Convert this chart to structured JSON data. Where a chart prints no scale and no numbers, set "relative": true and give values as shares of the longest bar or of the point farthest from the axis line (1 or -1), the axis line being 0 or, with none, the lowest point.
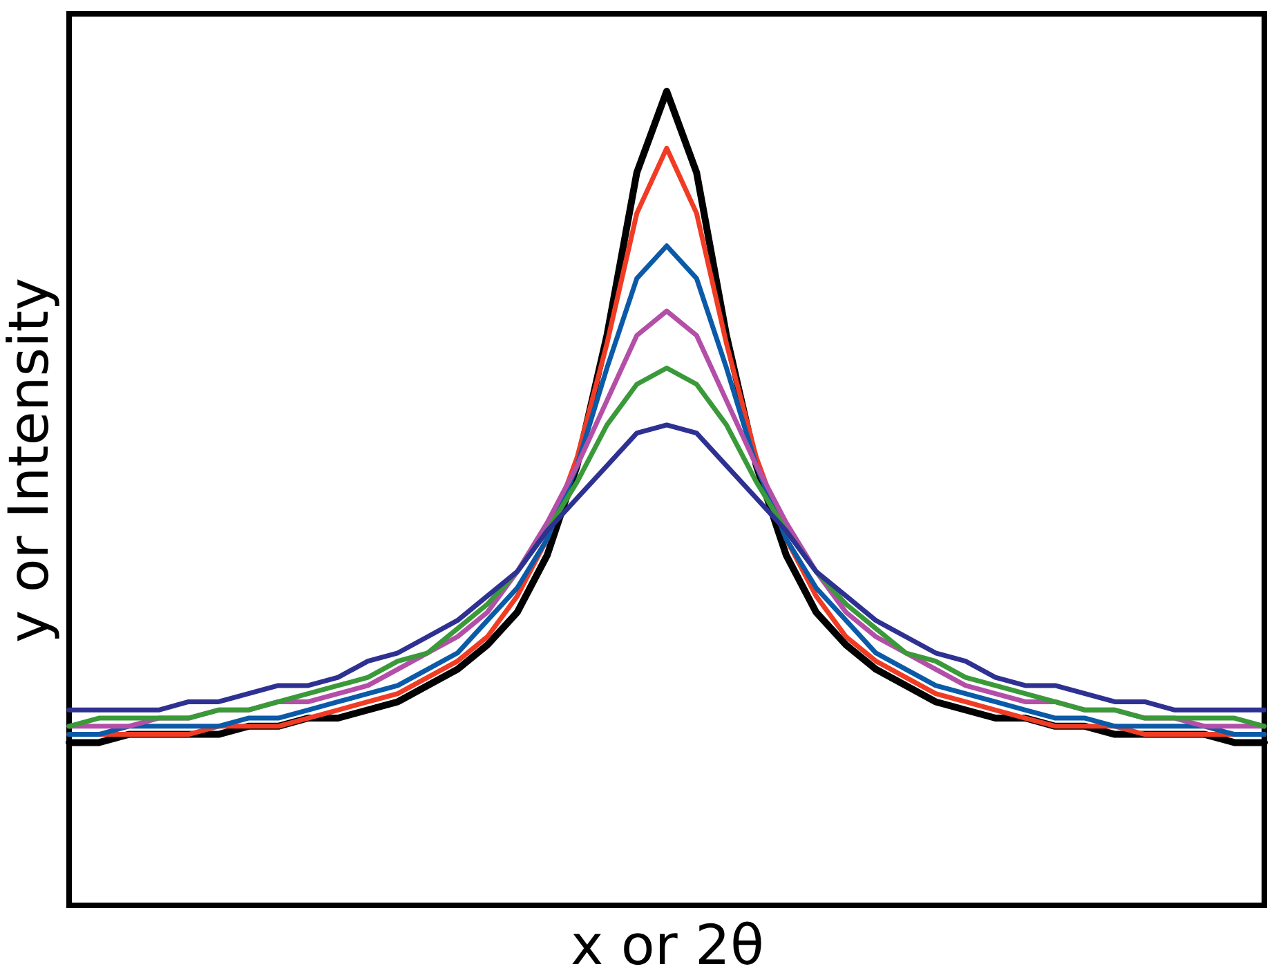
{
  "chart_data": {
    "type": "line",
    "relative": true,
    "xlabel": "x or 2θ",
    "ylabel": "y or Intensity",
    "categories": [
      null,
      null,
      null,
      null,
      null,
      null,
      null,
      null,
      null,
      null,
      null,
      null,
      null,
      null,
      null,
      null,
      null,
      null,
      null,
      null,
      null,
      null,
      null,
      null,
      null,
      null,
      null,
      null,
      null,
      null,
      null,
      null,
      null,
      null,
      null,
      null,
      null,
      null,
      null,
      null,
      null
    ],
    "series": [
      {
        "color": "#000000",
        "values": [
          0.2,
          0.2,
          0.21,
          0.21,
          0.21,
          0.21,
          0.22,
          0.22,
          0.23,
          0.23,
          0.24,
          0.25,
          0.27,
          0.29,
          0.32,
          0.36,
          0.43,
          0.54,
          0.7,
          0.9,
          1.0,
          0.9,
          0.7,
          0.54,
          0.43,
          0.36,
          0.32,
          0.29,
          0.27,
          0.25,
          0.24,
          0.23,
          0.23,
          0.22,
          0.22,
          0.21,
          0.21,
          0.21,
          0.21,
          0.2,
          0.2
        ]
      },
      {
        "color": "#f03c24",
        "values": [
          0.21,
          0.21,
          0.21,
          0.21,
          0.21,
          0.22,
          0.22,
          0.22,
          0.23,
          0.24,
          0.25,
          0.26,
          0.28,
          0.3,
          0.33,
          0.38,
          0.45,
          0.55,
          0.69,
          0.85,
          0.93,
          0.85,
          0.69,
          0.55,
          0.45,
          0.38,
          0.33,
          0.3,
          0.28,
          0.26,
          0.25,
          0.24,
          0.23,
          0.22,
          0.22,
          0.22,
          0.21,
          0.21,
          0.21,
          0.21,
          0.21
        ]
      },
      {
        "color": "#0a5aa8",
        "values": [
          0.21,
          0.21,
          0.22,
          0.22,
          0.22,
          0.22,
          0.23,
          0.23,
          0.24,
          0.25,
          0.26,
          0.27,
          0.29,
          0.31,
          0.35,
          0.39,
          0.45,
          0.54,
          0.66,
          0.77,
          0.81,
          0.77,
          0.66,
          0.54,
          0.45,
          0.39,
          0.35,
          0.31,
          0.29,
          0.27,
          0.26,
          0.25,
          0.24,
          0.23,
          0.23,
          0.22,
          0.22,
          0.22,
          0.22,
          0.21,
          0.21
        ]
      },
      {
        "color": "#b44fa8",
        "values": [
          0.22,
          0.22,
          0.22,
          0.23,
          0.23,
          0.24,
          0.24,
          0.25,
          0.25,
          0.26,
          0.27,
          0.29,
          0.31,
          0.33,
          0.36,
          0.41,
          0.47,
          0.54,
          0.62,
          0.7,
          0.73,
          0.7,
          0.62,
          0.54,
          0.47,
          0.41,
          0.36,
          0.33,
          0.31,
          0.29,
          0.27,
          0.26,
          0.25,
          0.25,
          0.24,
          0.24,
          0.23,
          0.23,
          0.22,
          0.22,
          0.22
        ]
      },
      {
        "color": "#3a9a3a",
        "values": [
          0.22,
          0.23,
          0.23,
          0.23,
          0.23,
          0.24,
          0.24,
          0.25,
          0.26,
          0.27,
          0.28,
          0.3,
          0.31,
          0.34,
          0.37,
          0.41,
          0.46,
          0.52,
          0.59,
          0.64,
          0.66,
          0.64,
          0.59,
          0.52,
          0.46,
          0.41,
          0.37,
          0.34,
          0.31,
          0.3,
          0.28,
          0.27,
          0.26,
          0.25,
          0.24,
          0.24,
          0.23,
          0.23,
          0.23,
          0.23,
          0.22
        ]
      },
      {
        "color": "#2e3192",
        "values": [
          0.24,
          0.24,
          0.24,
          0.24,
          0.25,
          0.25,
          0.26,
          0.27,
          0.27,
          0.28,
          0.3,
          0.31,
          0.33,
          0.35,
          0.38,
          0.41,
          0.46,
          0.5,
          0.54,
          0.58,
          0.59,
          0.58,
          0.54,
          0.5,
          0.46,
          0.41,
          0.38,
          0.35,
          0.33,
          0.31,
          0.3,
          0.28,
          0.27,
          0.27,
          0.26,
          0.25,
          0.25,
          0.24,
          0.24,
          0.24,
          0.24
        ]
      }
    ]
  }
}
